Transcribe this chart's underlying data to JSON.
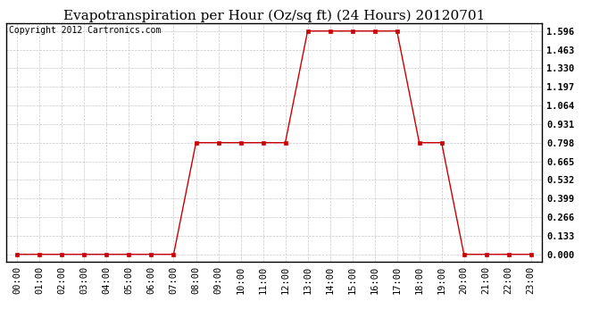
{
  "title": "Evapotranspiration per Hour (Oz/sq ft) (24 Hours) 20120701",
  "copyright": "Copyright 2012 Cartronics.com",
  "x_labels": [
    "00:00",
    "01:00",
    "02:00",
    "03:00",
    "04:00",
    "05:00",
    "06:00",
    "07:00",
    "08:00",
    "09:00",
    "10:00",
    "11:00",
    "12:00",
    "13:00",
    "14:00",
    "15:00",
    "16:00",
    "17:00",
    "18:00",
    "19:00",
    "20:00",
    "21:00",
    "22:00",
    "23:00"
  ],
  "y_values": [
    0.0,
    0.0,
    0.0,
    0.0,
    0.0,
    0.0,
    0.0,
    0.0,
    0.798,
    0.798,
    0.798,
    0.798,
    0.798,
    1.596,
    1.596,
    1.596,
    1.596,
    1.596,
    0.798,
    0.798,
    0.0,
    0.0,
    0.0,
    0.0
  ],
  "y_ticks": [
    0.0,
    0.133,
    0.266,
    0.399,
    0.532,
    0.665,
    0.798,
    0.931,
    1.064,
    1.197,
    1.33,
    1.463,
    1.596
  ],
  "ylim_min": -0.05,
  "ylim_max": 1.65,
  "line_color": "#cc0000",
  "marker": "s",
  "marker_size": 3,
  "bg_color": "#ffffff",
  "plot_bg_color": "#ffffff",
  "grid_color": "#c8c8c8",
  "title_fontsize": 11,
  "tick_fontsize": 7.5,
  "copyright_fontsize": 7,
  "border_color": "#000000"
}
